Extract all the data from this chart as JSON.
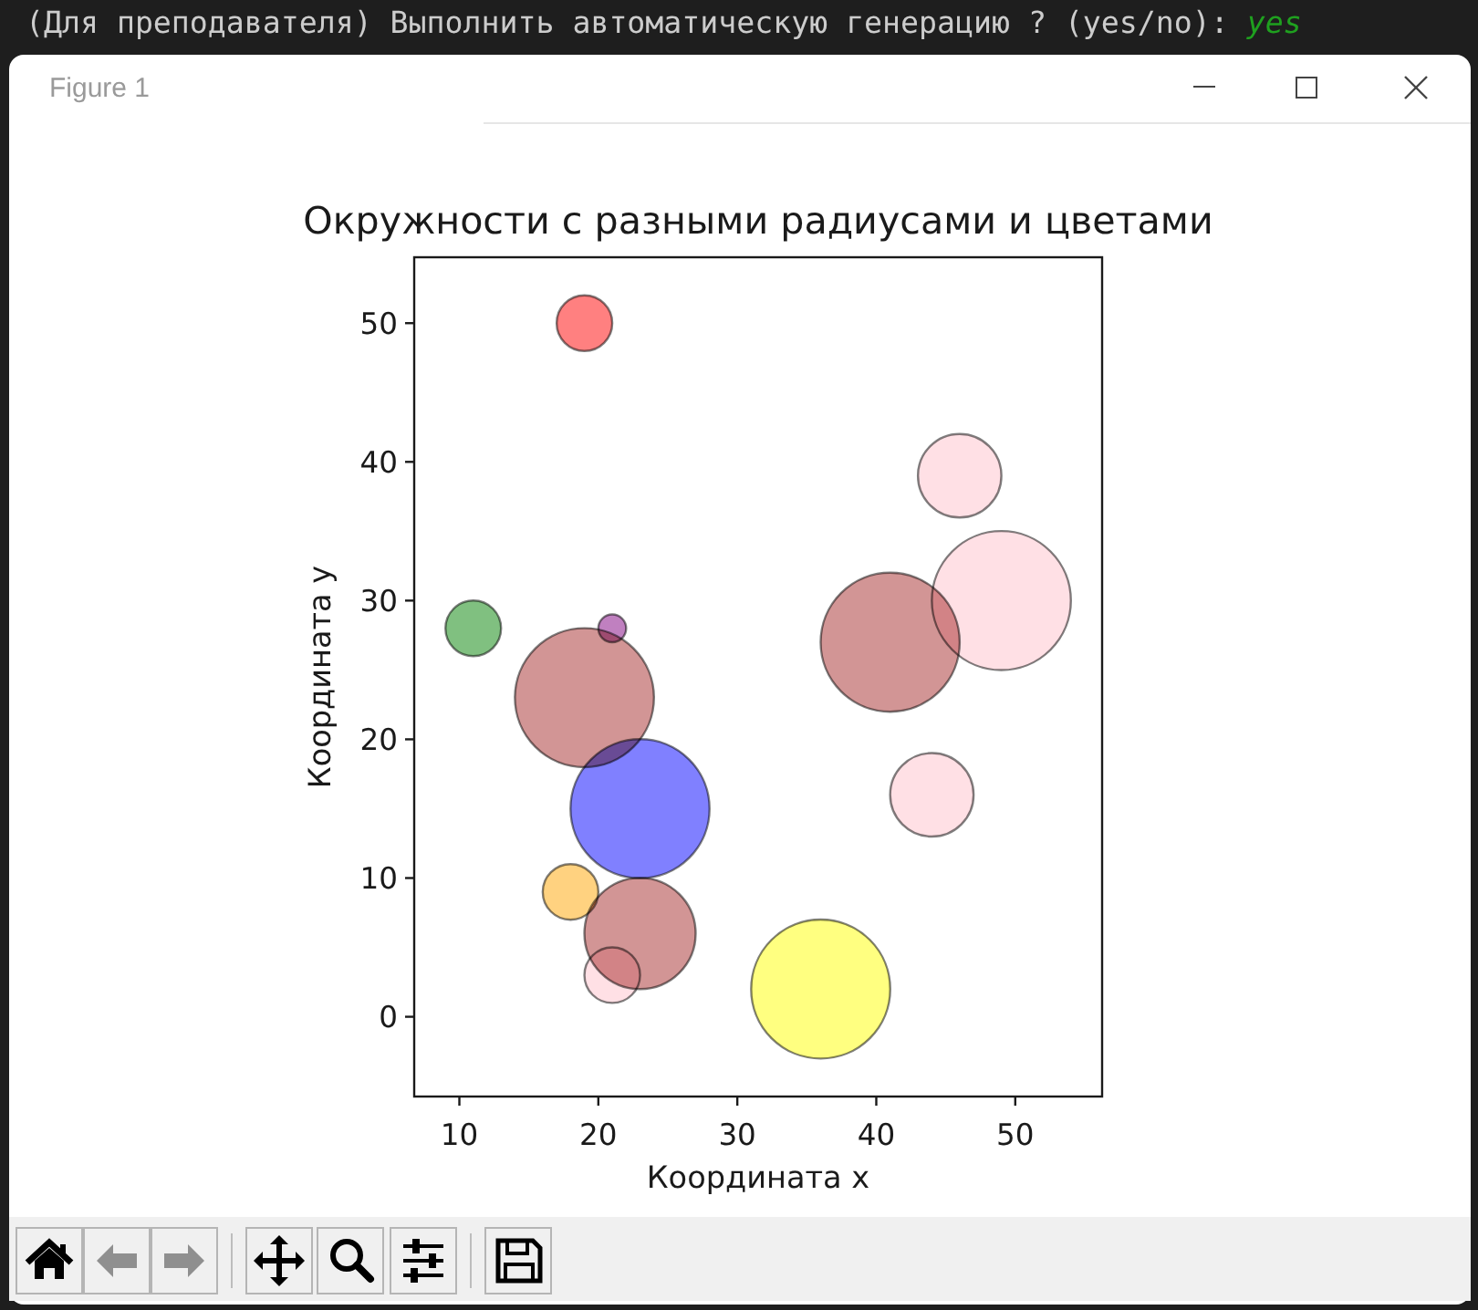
{
  "chart_data": {
    "type": "bubble",
    "title": "Окружности с разными радиусами и цветами",
    "xlabel": "Координата x",
    "ylabel": "Координата y",
    "x": [
      19,
      11,
      21,
      19,
      23,
      18,
      23,
      21,
      36,
      44,
      41,
      49,
      46
    ],
    "values": [
      50,
      28,
      28,
      23,
      15,
      9,
      6,
      3,
      2,
      16,
      27,
      30,
      39
    ],
    "sizes": [
      0.16,
      0.16,
      0.04,
      1,
      1,
      0.16,
      0.64,
      0.16,
      1,
      0.36,
      1,
      1,
      0.36
    ],
    "colors": [
      "#ff8080",
      "#80c080",
      "#c080c0",
      "#d29595",
      "#8080ff",
      "#ffd280",
      "#d29595",
      "#ffe0e5",
      "#ffff80",
      "#ffe0e5",
      "#d29595",
      "#ffe0e5",
      "#ffe0e5"
    ],
    "xlim": [
      6.75,
      56.25
    ],
    "ylim": [
      -5.75,
      54.75
    ],
    "xticks": [
      10,
      20,
      30,
      40,
      50
    ],
    "yticks": [
      0,
      10,
      20,
      30,
      40,
      50
    ],
    "annotations": [
      "(Для преподавателя) Выполнить автоматическую генерацию ? (yes/no):",
      "yes",
      "Figure 1"
    ]
  }
}
